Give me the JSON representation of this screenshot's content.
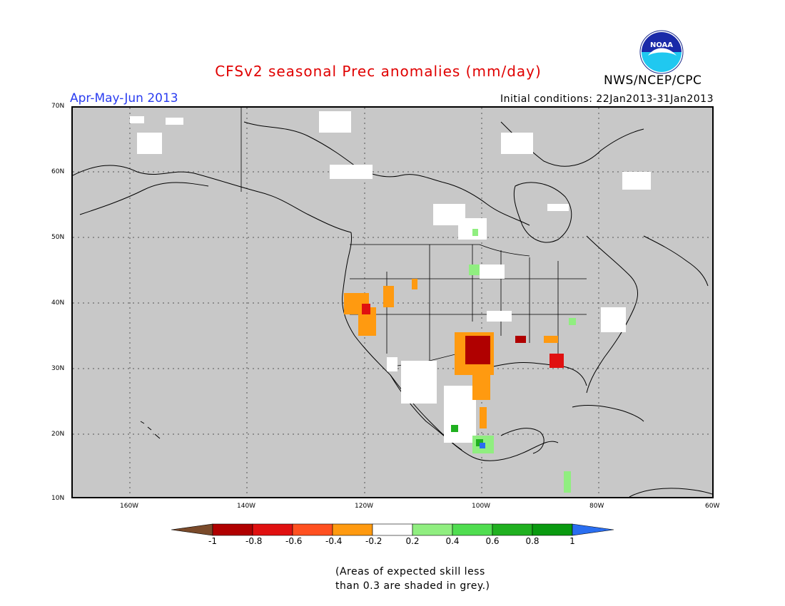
{
  "header": {
    "title": "CFSv2 seasonal Prec anomalies (mm/day)",
    "agency": "NWS/NCEP/CPC",
    "season": "Apr-May-Jun 2013",
    "initial_conditions": "Initial conditions: 22Jan2013-31Jan2013",
    "logo_text": "NOAA"
  },
  "map": {
    "lat_labels": [
      "70N",
      "60N",
      "50N",
      "40N",
      "30N",
      "20N",
      "10N"
    ],
    "lon_labels": [
      "160W",
      "140W",
      "120W",
      "100W",
      "80W",
      "60W"
    ],
    "background_color": "#c8c8c8"
  },
  "colorbar": {
    "tick_labels": [
      "-1",
      "-0.8",
      "-0.6",
      "-0.4",
      "-0.2",
      "0.2",
      "0.4",
      "0.6",
      "0.8",
      "1"
    ],
    "colors": [
      "#7a4a2a",
      "#b00000",
      "#e01010",
      "#ff5020",
      "#ff9a10",
      "#ffffff",
      "#90ee80",
      "#50dd50",
      "#20b020",
      "#0a9a10",
      "#2a6ef0"
    ]
  },
  "footer": {
    "line1": "(Areas of expected skill less",
    "line2": "than 0.3 are shaded in grey.)"
  }
}
